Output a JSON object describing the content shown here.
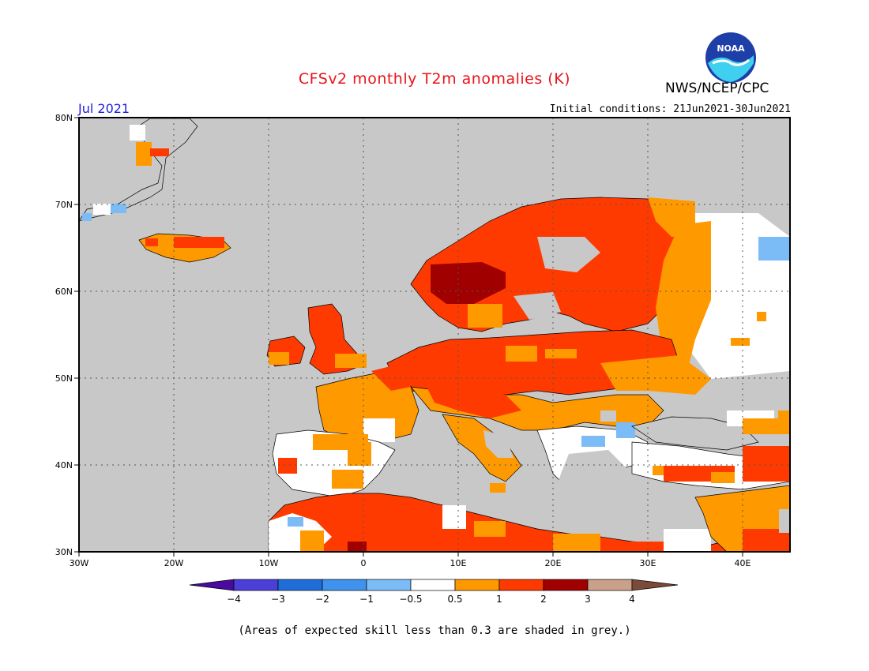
{
  "header": {
    "title": "CFSv2 monthly T2m anomalies (K)",
    "period": "Jul 2021",
    "initial_conditions": "Initial conditions: 21Jun2021-30Jun2021",
    "agency": "NWS/NCEP/CPC",
    "logo_text": "NOAA"
  },
  "map": {
    "lon_range": [
      -30,
      45
    ],
    "lat_range": [
      30,
      80
    ],
    "lat_labels": [
      "80N",
      "70N",
      "60N",
      "50N",
      "40N",
      "30N"
    ],
    "lon_labels": [
      "30W",
      "20W",
      "10W",
      "0",
      "10E",
      "20E",
      "30E",
      "40E"
    ],
    "grid": true,
    "colors": {
      "sea": "#c8c8c8",
      "land_neutral": "#ffffff",
      "skill_grey": "#c8c8c8",
      "anom_0_5_1": "#ff9900",
      "anom_1_2": "#ff3a00",
      "anom_2_3": "#a10000",
      "cool_minus1_0_5": "#7bbcf7"
    }
  },
  "legend": {
    "colors": [
      "#4a0aa0",
      "#4a3fd6",
      "#1f6ed8",
      "#3f92ee",
      "#7bbcf7",
      "#ffffff",
      "#ff9900",
      "#ff3a00",
      "#a10000",
      "#c9a08a",
      "#7a4a3a"
    ],
    "labels": [
      "−4",
      "−3",
      "−2",
      "−1",
      "−0.5",
      "0.5",
      "1",
      "2",
      "3",
      "4"
    ]
  },
  "footer": {
    "skill_note": "(Areas of expected skill less than 0.3 are shaded in grey.)"
  }
}
